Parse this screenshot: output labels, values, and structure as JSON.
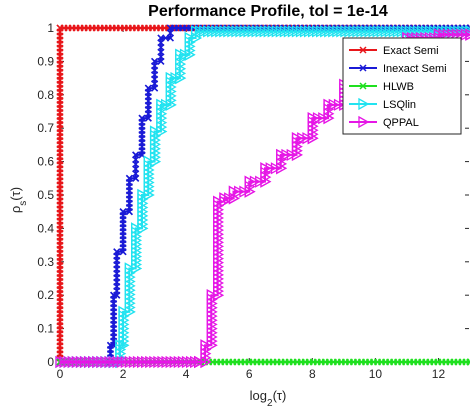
{
  "chart_data": {
    "type": "line",
    "title": "Performance Profile, tol = 1e-14",
    "xlabel": "log_2(τ)",
    "ylabel": "ρ_s(τ)",
    "xlim": [
      0,
      13
    ],
    "ylim": [
      0,
      1
    ],
    "xticks": [
      "0",
      "2",
      "4",
      "6",
      "8",
      "10",
      "12"
    ],
    "yticks": [
      "0",
      "0.1",
      "0.2",
      "0.3",
      "0.4",
      "0.5",
      "0.6",
      "0.7",
      "0.8",
      "0.9",
      "1"
    ],
    "grid": false,
    "legend_position": "top-right",
    "series": [
      {
        "name": "Exact Semi",
        "color": "#e8161a",
        "marker": "x",
        "x": [
          0,
          0,
          13
        ],
        "y": [
          0,
          1,
          1
        ]
      },
      {
        "name": "Inexact Semi",
        "color": "#1a1ad6",
        "marker": "x",
        "x": [
          0,
          1.4,
          1.6,
          1.7,
          1.8,
          2.0,
          2.2,
          2.4,
          2.6,
          2.8,
          3.0,
          3.2,
          3.5,
          13
        ],
        "y": [
          0,
          0,
          0.05,
          0.2,
          0.33,
          0.45,
          0.55,
          0.62,
          0.73,
          0.82,
          0.9,
          0.97,
          1,
          1
        ]
      },
      {
        "name": "HLWB",
        "color": "#1fe01f",
        "marker": "x",
        "x": [
          0,
          13
        ],
        "y": [
          0,
          0
        ]
      },
      {
        "name": "LSQlin",
        "color": "#22e3f0",
        "marker": "triangle-right",
        "x": [
          0,
          1.7,
          1.9,
          2.0,
          2.2,
          2.4,
          2.6,
          2.8,
          3.0,
          3.2,
          3.5,
          3.8,
          4.1,
          4.3,
          13
        ],
        "y": [
          0,
          0,
          0.05,
          0.15,
          0.28,
          0.4,
          0.5,
          0.6,
          0.69,
          0.77,
          0.85,
          0.92,
          0.97,
          0.99,
          0.99
        ]
      },
      {
        "name": "QPPAL",
        "color": "#e617e6",
        "marker": "triangle-right",
        "x": [
          0,
          4.4,
          4.6,
          4.8,
          5.0,
          5.2,
          5.5,
          6.0,
          6.5,
          7.0,
          7.5,
          8.0,
          8.5,
          9.0,
          9.5,
          10.0,
          11.0,
          12.0,
          13
        ],
        "y": [
          0,
          0,
          0.05,
          0.2,
          0.48,
          0.49,
          0.51,
          0.54,
          0.58,
          0.62,
          0.67,
          0.73,
          0.77,
          0.83,
          0.88,
          0.92,
          0.97,
          0.98,
          0.98
        ]
      }
    ]
  }
}
